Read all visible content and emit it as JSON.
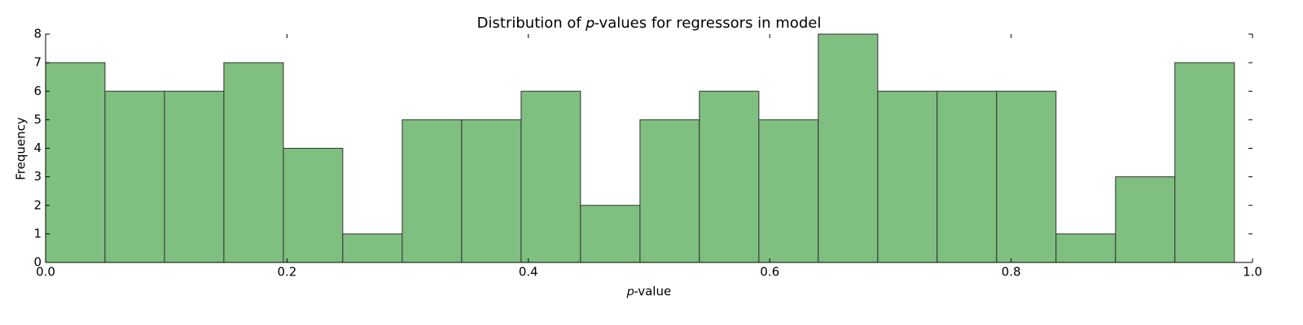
{
  "chart_data": {
    "type": "histogram",
    "title": "Distribution of 𝑝-values for regressors in model",
    "x_label": "𝑝-value",
    "y_label": "Frequency",
    "bins": [
      0,
      0.0492,
      0.0985,
      0.1477,
      0.197,
      0.2462,
      0.2955,
      0.3447,
      0.394,
      0.4432,
      0.4925,
      0.5417,
      0.591,
      0.6402,
      0.6895,
      0.7387,
      0.788,
      0.8372,
      0.8865,
      0.9357,
      0.985
    ],
    "values": [
      7,
      6,
      6,
      7,
      4,
      1,
      5,
      5,
      6,
      2,
      5,
      6,
      5,
      8,
      6,
      6,
      6,
      1,
      3,
      7
    ],
    "color": "#7fbf7f",
    "edgecolor": "#333333",
    "xlim": [
      0,
      1
    ],
    "ylim": [
      0,
      8
    ],
    "xticks": [
      {
        "value": 0,
        "label": "0.0"
      },
      0.2,
      0.4,
      0.6,
      0.8,
      {
        "value": 1,
        "label": "1.0"
      }
    ],
    "yticks": [
      0,
      1,
      2,
      3,
      4,
      5,
      6,
      7,
      8
    ]
  }
}
